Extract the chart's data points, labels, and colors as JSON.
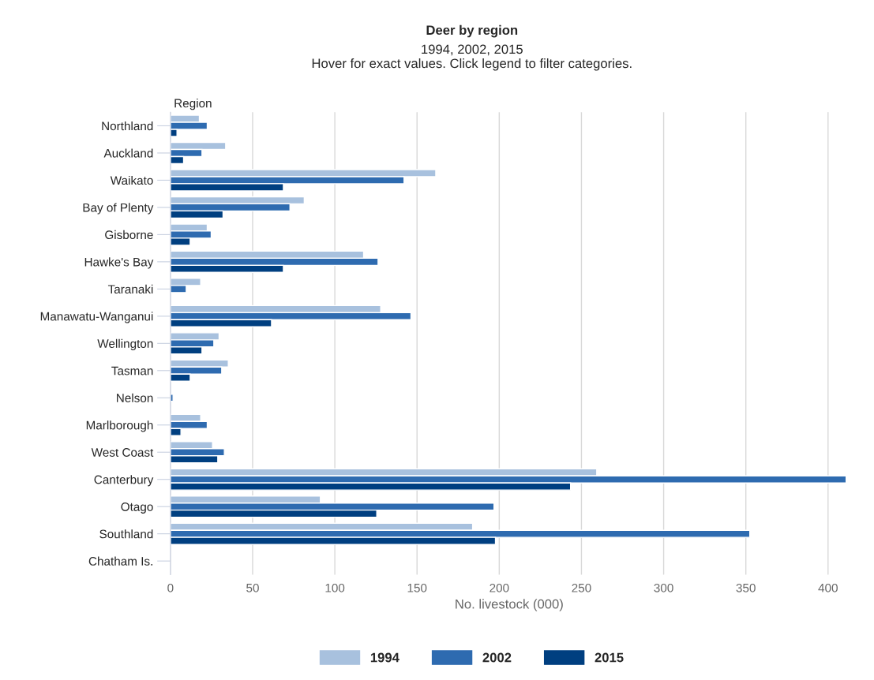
{
  "chart_data": {
    "type": "bar",
    "orientation": "horizontal",
    "title": "Deer by region",
    "subtitle": "1994, 2002, 2015\nHover for exact values. Click legend to filter categories.",
    "ylabel": "Region",
    "xlabel": "No. livestock (000)",
    "categories": [
      "Northland",
      "Auckland",
      "Waikato",
      "Bay of Plenty",
      "Gisborne",
      "Hawke's Bay",
      "Taranaki",
      "Manawatu-Wanganui",
      "Wellington",
      "Tasman",
      "Nelson",
      "Marlborough",
      "West Coast",
      "Canterbury",
      "Otago",
      "Southland",
      "Chatham Is."
    ],
    "series": [
      {
        "name": "1994",
        "color": "#a8c1de",
        "values": [
          17.6,
          33.6,
          161.4,
          81.4,
          22.4,
          117.5,
          18.4,
          127.9,
          29.6,
          35.2,
          null,
          18.4,
          25.6,
          259.3,
          91.2,
          183.8,
          null
        ]
      },
      {
        "name": "2002",
        "color": "#2e6bb0",
        "values": [
          22.4,
          19.2,
          142.1,
          72.7,
          24.8,
          126.3,
          9.6,
          146.3,
          26.4,
          31.2,
          1.6,
          22.4,
          32.8,
          411,
          196.8,
          352.4,
          null
        ]
      },
      {
        "name": "2015",
        "color": "#003f80",
        "values": [
          4.0,
          8.0,
          68.7,
          32.0,
          12.0,
          68.7,
          null,
          61.5,
          19.2,
          12.0,
          null,
          6.4,
          28.8,
          243.4,
          125.5,
          197.7,
          null
        ]
      }
    ],
    "xlim": [
      0,
      412
    ],
    "xticks": [
      0,
      50,
      100,
      150,
      200,
      250,
      300,
      350,
      400
    ],
    "grid": "x",
    "legend": "bottom"
  }
}
